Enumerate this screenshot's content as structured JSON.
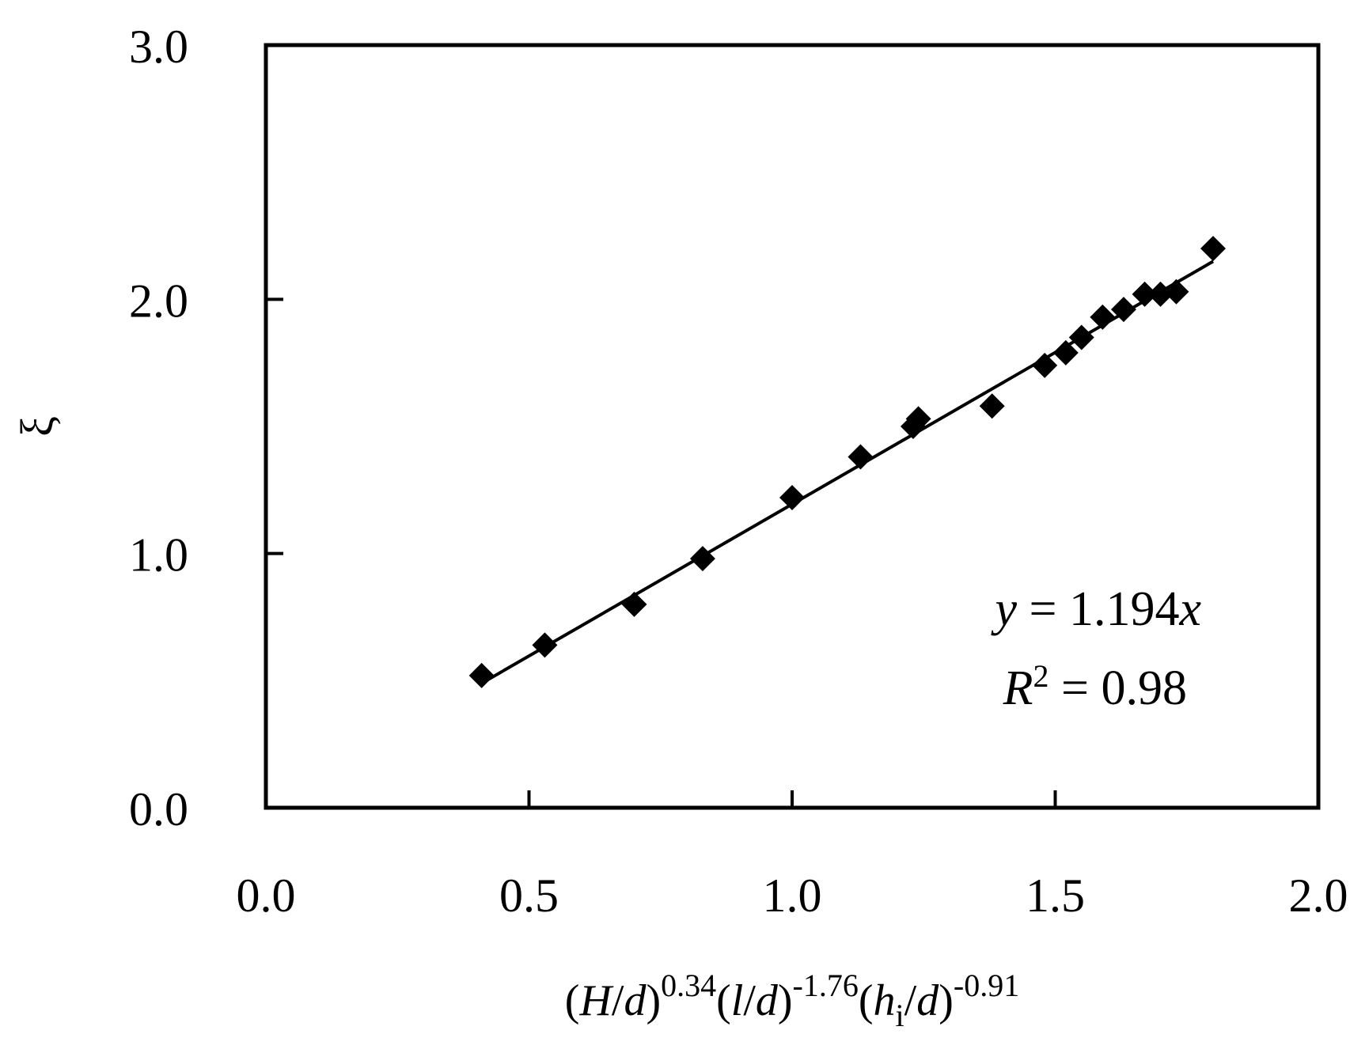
{
  "chart_data": {
    "type": "scatter",
    "xlabel": {
      "parts": [
        {
          "text": "(",
          "style": "normal"
        },
        {
          "text": "H",
          "style": "italic"
        },
        {
          "text": "/",
          "style": "normal"
        },
        {
          "text": "d",
          "style": "italic"
        },
        {
          "text": ")",
          "style": "normal"
        },
        {
          "text": "0.34",
          "style": "sup"
        },
        {
          "text": "(",
          "style": "normal"
        },
        {
          "text": "l",
          "style": "italic"
        },
        {
          "text": "/",
          "style": "normal"
        },
        {
          "text": "d",
          "style": "italic"
        },
        {
          "text": ")",
          "style": "normal"
        },
        {
          "text": "-1.76",
          "style": "sup"
        },
        {
          "text": "(",
          "style": "normal"
        },
        {
          "text": "h",
          "style": "italic"
        },
        {
          "text": "i",
          "style": "sub"
        },
        {
          "text": "/",
          "style": "normal"
        },
        {
          "text": "d",
          "style": "italic"
        },
        {
          "text": ")",
          "style": "normal"
        },
        {
          "text": "-0.91",
          "style": "sup"
        }
      ]
    },
    "ylabel": "ξ",
    "xlim": [
      0.0,
      2.0
    ],
    "ylim": [
      0.0,
      3.0
    ],
    "xticks": [
      0.0,
      0.5,
      1.0,
      1.5,
      2.0
    ],
    "xtick_labels": [
      "0.0",
      "0.5",
      "1.0",
      "1.5",
      "2.0"
    ],
    "yticks": [
      0.0,
      1.0,
      2.0,
      3.0
    ],
    "ytick_labels": [
      "0.0",
      "1.0",
      "2.0",
      "3.0"
    ],
    "grid": false,
    "marker": "diamond",
    "marker_color": "#000000",
    "series": [
      {
        "x": [
          0.41,
          0.53,
          0.7,
          0.83,
          1.0,
          1.13,
          1.23,
          1.24,
          1.38,
          1.48,
          1.52,
          1.55,
          1.59,
          1.63,
          1.67,
          1.7,
          1.73,
          1.8
        ],
        "y": [
          0.52,
          0.64,
          0.8,
          0.98,
          1.22,
          1.38,
          1.5,
          1.53,
          1.58,
          1.74,
          1.79,
          1.85,
          1.93,
          1.96,
          2.02,
          2.02,
          2.03,
          2.2
        ]
      }
    ],
    "trendline": {
      "slope": 1.194,
      "x_range": [
        0.41,
        1.8
      ],
      "color": "#000000"
    },
    "annotations": {
      "equation": {
        "var": "y",
        "equals": " = 1.194",
        "x_var": "x"
      },
      "r2": {
        "var": "R",
        "sup": "2",
        "rest": " = 0.98"
      }
    }
  }
}
